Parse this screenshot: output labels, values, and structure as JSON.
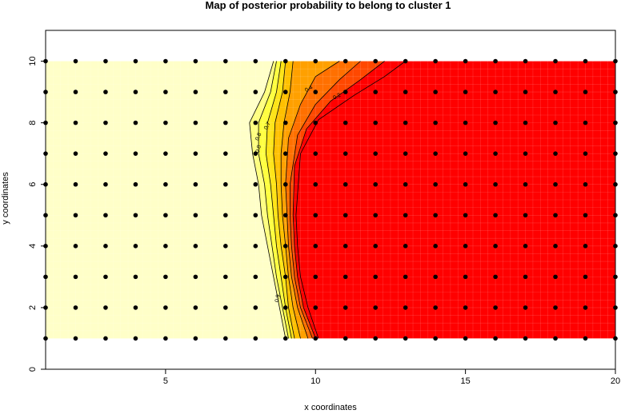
{
  "chart_data": {
    "type": "heatmap",
    "title": "Map of posterior probability to belong to cluster  1",
    "xlabel": "x coordinates",
    "ylabel": "y coordinates",
    "xlim": [
      1,
      20
    ],
    "ylim": [
      0,
      11
    ],
    "x_ticks": [
      5,
      10,
      15,
      20
    ],
    "y_ticks": [
      0,
      2,
      4,
      6,
      8,
      10
    ],
    "grid_points": {
      "x": [
        1,
        2,
        3,
        4,
        5,
        6,
        7,
        8,
        9,
        10,
        11,
        12,
        13,
        14,
        15,
        16,
        17,
        18,
        19,
        20
      ],
      "y": [
        1,
        2,
        3,
        4,
        5,
        6,
        7,
        8,
        9,
        10
      ]
    },
    "surface_extent": {
      "x": [
        1,
        20
      ],
      "y": [
        1,
        10
      ]
    },
    "contour_levels": [
      0.1,
      0.2,
      0.3,
      0.4,
      0.5,
      0.6,
      0.7,
      0.8,
      0.9
    ],
    "contour_labels_shown": [
      "0.9",
      "0.8",
      "0.7",
      "0.8",
      "0.4",
      "0.2"
    ],
    "contour_lines": [
      {
        "level": 0.9,
        "points": [
          [
            8.6,
            10
          ],
          [
            8.3,
            9
          ],
          [
            7.8,
            8
          ],
          [
            7.9,
            7
          ],
          [
            8.1,
            6
          ],
          [
            8.2,
            5
          ],
          [
            8.4,
            4
          ],
          [
            8.6,
            3
          ],
          [
            8.8,
            2
          ],
          [
            9.0,
            1
          ]
        ]
      },
      {
        "level": 0.8,
        "points": [
          [
            8.7,
            10
          ],
          [
            8.5,
            9
          ],
          [
            8.1,
            8
          ],
          [
            8.1,
            7
          ],
          [
            8.3,
            6
          ],
          [
            8.4,
            5
          ],
          [
            8.55,
            4
          ],
          [
            8.7,
            3
          ],
          [
            8.9,
            2
          ],
          [
            9.1,
            1
          ]
        ]
      },
      {
        "level": 0.7,
        "points": [
          [
            8.85,
            10
          ],
          [
            8.7,
            9
          ],
          [
            8.4,
            8
          ],
          [
            8.35,
            7
          ],
          [
            8.5,
            6
          ],
          [
            8.6,
            5
          ],
          [
            8.7,
            4
          ],
          [
            8.85,
            3
          ],
          [
            9.0,
            2
          ],
          [
            9.2,
            1
          ]
        ]
      },
      {
        "level": 0.6,
        "points": [
          [
            9.0,
            10
          ],
          [
            8.9,
            9
          ],
          [
            8.65,
            8
          ],
          [
            8.6,
            7
          ],
          [
            8.7,
            6
          ],
          [
            8.75,
            5
          ],
          [
            8.85,
            4
          ],
          [
            9.0,
            3
          ],
          [
            9.1,
            2
          ],
          [
            9.3,
            1
          ]
        ]
      },
      {
        "level": 0.5,
        "points": [
          [
            9.25,
            10
          ],
          [
            9.15,
            9
          ],
          [
            8.95,
            8
          ],
          [
            8.85,
            7
          ],
          [
            8.85,
            6
          ],
          [
            8.9,
            5
          ],
          [
            9.0,
            4
          ],
          [
            9.1,
            3
          ],
          [
            9.25,
            2
          ],
          [
            9.5,
            1
          ]
        ]
      },
      {
        "level": 0.4,
        "points": [
          [
            10.8,
            10
          ],
          [
            10.0,
            9.5
          ],
          [
            9.5,
            8.6
          ],
          [
            9.1,
            7.5
          ],
          [
            9.0,
            6
          ],
          [
            9.05,
            5
          ],
          [
            9.1,
            4
          ],
          [
            9.2,
            3
          ],
          [
            9.4,
            2
          ],
          [
            9.75,
            1
          ]
        ]
      },
      {
        "level": 0.3,
        "points": [
          [
            11.5,
            10
          ],
          [
            10.8,
            9.4
          ],
          [
            10.0,
            8.6
          ],
          [
            9.4,
            7.6
          ],
          [
            9.15,
            6
          ],
          [
            9.15,
            5
          ],
          [
            9.2,
            4
          ],
          [
            9.3,
            3
          ],
          [
            9.5,
            2
          ],
          [
            9.9,
            1
          ]
        ]
      },
      {
        "level": 0.2,
        "points": [
          [
            12.3,
            10
          ],
          [
            11.5,
            9.4
          ],
          [
            10.5,
            8.7
          ],
          [
            9.7,
            7.8
          ],
          [
            9.3,
            6.6
          ],
          [
            9.25,
            5
          ],
          [
            9.3,
            4
          ],
          [
            9.4,
            3
          ],
          [
            9.6,
            2
          ],
          [
            10.0,
            1
          ]
        ]
      },
      {
        "level": 0.1,
        "points": [
          [
            13.0,
            10
          ],
          [
            12.3,
            9.5
          ],
          [
            11.3,
            8.9
          ],
          [
            10.1,
            8.1
          ],
          [
            9.5,
            7
          ],
          [
            9.35,
            5
          ],
          [
            9.4,
            4
          ],
          [
            9.5,
            3
          ],
          [
            9.75,
            2
          ],
          [
            10.1,
            1
          ]
        ]
      }
    ],
    "colors": {
      "level_0.9_1.0": "#ffffc8",
      "level_0.8_0.9": "#ffff80",
      "level_0.7_0.8": "#ffff40",
      "level_0.6_0.7": "#ffe418",
      "level_0.5_0.6": "#ffc000",
      "level_0.4_0.5": "#ffa000",
      "level_0.3_0.4": "#ff7000",
      "level_0.2_0.3": "#ff4800",
      "level_0.0_0.2": "#ff0000",
      "points": "#000000"
    },
    "grid": true,
    "legend": "none"
  }
}
